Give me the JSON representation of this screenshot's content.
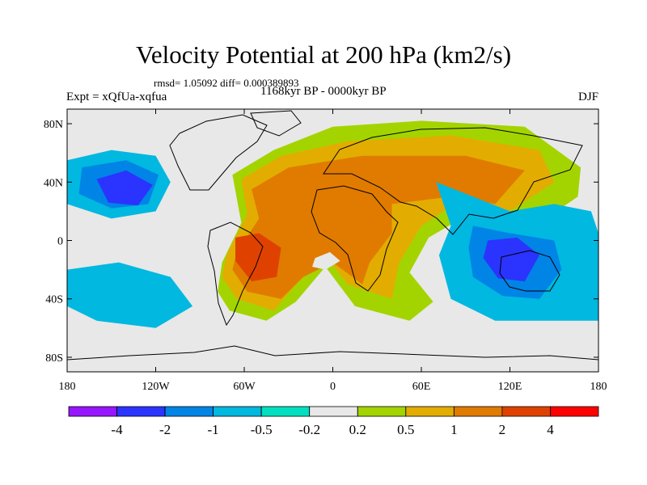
{
  "title": "Velocity Potential at 200 hPa (km2/s)",
  "stats_line": "rmsd= 1.05092 diff= 0.000389893",
  "period_line": "1168kyr BP - 0000kyr BP",
  "experiment_line": "Expt = xQfUa-xqfua",
  "season": "DJF",
  "map": {
    "projection": "cylindrical equidistant",
    "lon_range": [
      -180,
      180
    ],
    "lat_range": [
      -90,
      90
    ],
    "lat_ticks": [
      {
        "value": 80,
        "label": "80N"
      },
      {
        "value": 40,
        "label": "40N"
      },
      {
        "value": 0,
        "label": "0"
      },
      {
        "value": -40,
        "label": "40S"
      },
      {
        "value": -80,
        "label": "80S"
      }
    ],
    "lon_ticks": [
      {
        "value": -180,
        "label": "180"
      },
      {
        "value": -120,
        "label": "120W"
      },
      {
        "value": -60,
        "label": "60W"
      },
      {
        "value": 0,
        "label": "0"
      },
      {
        "value": 60,
        "label": "60E"
      },
      {
        "value": 120,
        "label": "120E"
      },
      {
        "value": 180,
        "label": "180"
      }
    ],
    "missing_color": "#e8e8e8",
    "contour_regions": [
      {
        "name": "atlantic-africa-asia-positive",
        "color": "#a3d400",
        "lonlat": [
          [
            -75,
            -15
          ],
          [
            -62,
            12
          ],
          [
            -68,
            45
          ],
          [
            -40,
            62
          ],
          [
            0,
            78
          ],
          [
            60,
            82
          ],
          [
            130,
            78
          ],
          [
            168,
            50
          ],
          [
            166,
            30
          ],
          [
            140,
            12
          ],
          [
            100,
            22
          ],
          [
            82,
            12
          ],
          [
            65,
            2
          ],
          [
            52,
            -22
          ],
          [
            68,
            -42
          ],
          [
            52,
            -55
          ],
          [
            15,
            -45
          ],
          [
            -5,
            -18
          ],
          [
            -25,
            -42
          ],
          [
            -45,
            -55
          ],
          [
            -70,
            -48
          ],
          [
            -78,
            -35
          ]
        ]
      },
      {
        "name": "atlantic-africa-asia-orange",
        "color": "#e2ad00",
        "lonlat": [
          [
            -72,
            -10
          ],
          [
            -58,
            18
          ],
          [
            -62,
            42
          ],
          [
            -35,
            58
          ],
          [
            10,
            68
          ],
          [
            80,
            72
          ],
          [
            140,
            62
          ],
          [
            150,
            40
          ],
          [
            120,
            20
          ],
          [
            90,
            30
          ],
          [
            60,
            10
          ],
          [
            45,
            -15
          ],
          [
            40,
            -40
          ],
          [
            10,
            -30
          ],
          [
            -5,
            -10
          ],
          [
            -25,
            -30
          ],
          [
            -40,
            -48
          ],
          [
            -65,
            -40
          ],
          [
            -75,
            -25
          ]
        ]
      },
      {
        "name": "atlantic-africa-asia-dark-orange",
        "color": "#e07b00",
        "lonlat": [
          [
            -65,
            -8
          ],
          [
            -50,
            15
          ],
          [
            -55,
            35
          ],
          [
            -30,
            50
          ],
          [
            20,
            58
          ],
          [
            90,
            58
          ],
          [
            130,
            48
          ],
          [
            110,
            25
          ],
          [
            80,
            30
          ],
          [
            40,
            25
          ],
          [
            40,
            5
          ],
          [
            25,
            -15
          ],
          [
            20,
            -30
          ],
          [
            0,
            -15
          ],
          [
            -20,
            -25
          ],
          [
            -35,
            -40
          ],
          [
            -58,
            -35
          ],
          [
            -68,
            -20
          ]
        ]
      },
      {
        "name": "south-america-red",
        "color": "#df4200",
        "lonlat": [
          [
            -66,
            2
          ],
          [
            -50,
            5
          ],
          [
            -35,
            -5
          ],
          [
            -38,
            -25
          ],
          [
            -55,
            -28
          ],
          [
            -66,
            -14
          ]
        ]
      },
      {
        "name": "africa-dark-core",
        "color": "#e8e8e8",
        "lonlat": [
          [
            -12,
            -12
          ],
          [
            -2,
            -8
          ],
          [
            5,
            -14
          ],
          [
            -5,
            -20
          ],
          [
            -14,
            -18
          ]
        ]
      },
      {
        "name": "north-pacific-low",
        "color": "#00b8e0",
        "lonlat": [
          [
            -180,
            55
          ],
          [
            -150,
            62
          ],
          [
            -120,
            58
          ],
          [
            -110,
            40
          ],
          [
            -120,
            20
          ],
          [
            -150,
            15
          ],
          [
            -180,
            25
          ]
        ]
      },
      {
        "name": "north-pacific-mid",
        "color": "#0084e6",
        "lonlat": [
          [
            -170,
            50
          ],
          [
            -140,
            55
          ],
          [
            -118,
            45
          ],
          [
            -125,
            25
          ],
          [
            -150,
            22
          ],
          [
            -172,
            32
          ]
        ]
      },
      {
        "name": "north-pacific-core",
        "color": "#2b33ff",
        "lonlat": [
          [
            -160,
            42
          ],
          [
            -140,
            48
          ],
          [
            -122,
            38
          ],
          [
            -132,
            24
          ],
          [
            -152,
            26
          ]
        ]
      },
      {
        "name": "south-pacific-low",
        "color": "#00b8e0",
        "lonlat": [
          [
            -180,
            -20
          ],
          [
            -145,
            -15
          ],
          [
            -110,
            -25
          ],
          [
            -95,
            -45
          ],
          [
            -120,
            -60
          ],
          [
            -160,
            -55
          ],
          [
            -180,
            -45
          ]
        ]
      },
      {
        "name": "indian-ocean-low",
        "color": "#00b8e0",
        "lonlat": [
          [
            70,
            40
          ],
          [
            95,
            30
          ],
          [
            120,
            20
          ],
          [
            150,
            25
          ],
          [
            175,
            20
          ],
          [
            180,
            5
          ],
          [
            180,
            -55
          ],
          [
            150,
            -55
          ],
          [
            110,
            -55
          ],
          [
            80,
            -40
          ],
          [
            72,
            -10
          ],
          [
            80,
            10
          ]
        ]
      },
      {
        "name": "indian-ocean-mid",
        "color": "#0084e6",
        "lonlat": [
          [
            95,
            10
          ],
          [
            120,
            5
          ],
          [
            150,
            0
          ],
          [
            155,
            -20
          ],
          [
            140,
            -40
          ],
          [
            115,
            -38
          ],
          [
            95,
            -25
          ],
          [
            92,
            -5
          ]
        ]
      },
      {
        "name": "indian-ocean-core",
        "color": "#2b33ff",
        "lonlat": [
          [
            105,
            0
          ],
          [
            125,
            2
          ],
          [
            140,
            -10
          ],
          [
            130,
            -28
          ],
          [
            112,
            -26
          ],
          [
            102,
            -12
          ]
        ]
      }
    ]
  },
  "colorbar": {
    "colors": [
      "#9616ff",
      "#2b33ff",
      "#0084e6",
      "#00b8e0",
      "#00e0c0",
      "#e8e8e8",
      "#a3d400",
      "#e2ad00",
      "#e07b00",
      "#df4200",
      "#ff0000"
    ],
    "labels": [
      "-4",
      "-2",
      "-1",
      "-0.5",
      "-0.2",
      "0.2",
      "0.5",
      "1",
      "2",
      "4"
    ]
  }
}
